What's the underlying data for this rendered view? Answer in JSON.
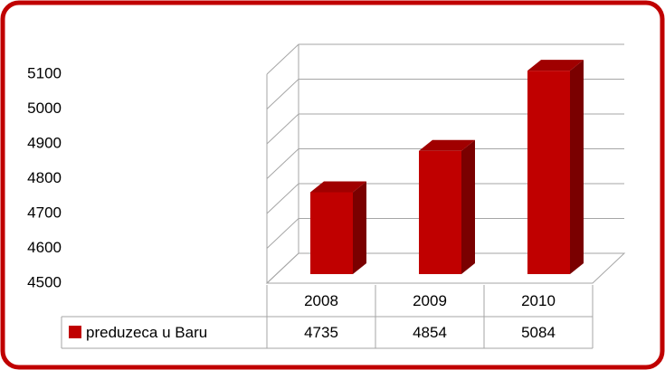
{
  "chart_data": {
    "type": "bar3d",
    "categories": [
      "2008",
      "2009",
      "2010"
    ],
    "series": [
      {
        "name": "preduzeca u Baru",
        "color": "#c00000",
        "values": [
          4735,
          4854,
          5084
        ]
      }
    ],
    "ylim": [
      4500,
      5100
    ],
    "yticks": [
      4500,
      4600,
      4700,
      4800,
      4900,
      5000,
      5100
    ],
    "grid": true
  }
}
